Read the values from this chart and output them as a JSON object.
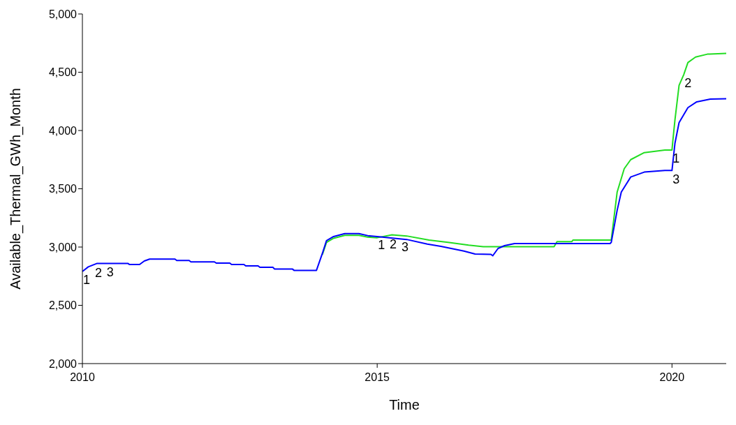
{
  "chart_data": {
    "type": "line",
    "xlabel": "Time",
    "ylabel": "Available_Thermal_GWh_Month",
    "xlim": [
      2010,
      2020.92
    ],
    "xticks": [
      2010,
      2015,
      2020
    ],
    "ylim": [
      2000,
      5000
    ],
    "yticks": [
      {
        "value": 2000,
        "label": "2,000"
      },
      {
        "value": 2500,
        "label": "2,500"
      },
      {
        "value": 3000,
        "label": "3,000"
      },
      {
        "value": 3500,
        "label": "3,500"
      },
      {
        "value": 4000,
        "label": "4,000"
      },
      {
        "value": 4500,
        "label": "4,500"
      },
      {
        "value": 5000,
        "label": "5,000"
      }
    ],
    "annotations": [
      {
        "text": "1",
        "x": 2010,
        "y": 2790
      },
      {
        "text": "2",
        "x": 2010.2,
        "y": 2850
      },
      {
        "text": "3",
        "x": 2010.4,
        "y": 2860
      },
      {
        "text": "1",
        "x": 2015,
        "y": 3090
      },
      {
        "text": "2",
        "x": 2015.2,
        "y": 3100
      },
      {
        "text": "3",
        "x": 2015.4,
        "y": 3075
      },
      {
        "text": "1",
        "x": 2020,
        "y": 3833
      },
      {
        "text": "2",
        "x": 2020.2,
        "y": 4480
      },
      {
        "text": "3",
        "x": 2020,
        "y": 3657
      }
    ],
    "series": [
      {
        "color": "#22dd22",
        "x": [
          2014.07,
          2014.14,
          2014.26,
          2014.45,
          2014.69,
          2014.84,
          2015,
          2015.25,
          2015.5,
          2015.88,
          2016.2,
          2016.55,
          2016.8,
          2018,
          2018.05,
          2018.3,
          2018.32,
          2018.97,
          2019.07,
          2019.19,
          2019.3,
          2019.53,
          2019.88,
          2020,
          2020.01,
          2020.05,
          2020.12,
          2020.2,
          2020.27,
          2020.4,
          2020.6,
          2020.92
        ],
        "values": [
          2935,
          3040,
          3075,
          3100,
          3100,
          3085,
          3080,
          3105,
          3095,
          3060,
          3040,
          3016,
          3003,
          3003,
          3046,
          3046,
          3060,
          3060,
          3472,
          3672,
          3750,
          3810,
          3833,
          3833,
          3889,
          4089,
          4387,
          4480,
          4583,
          4630,
          4655,
          4661
        ]
      },
      {
        "color": "#0000ff",
        "x": [
          2010,
          2010.1,
          2010.25,
          2010.77,
          2010.8,
          2010.97,
          2011.05,
          2011.14,
          2011.57,
          2011.6,
          2011.81,
          2011.84,
          2012.24,
          2012.27,
          2012.5,
          2012.53,
          2012.74,
          2012.77,
          2012.98,
          2013.01,
          2013.23,
          2013.26,
          2013.56,
          2013.59,
          2013.97,
          2014.07,
          2014.14,
          2014.26,
          2014.45,
          2014.69,
          2014.84,
          2015,
          2015.5,
          2015.85,
          2016.08,
          2016.47,
          2016.66,
          2016.93,
          2016.96,
          2017.05,
          2017.16,
          2017.33,
          2018.95,
          2018.97,
          2019.07,
          2019.14,
          2019.3,
          2019.53,
          2019.88,
          2020,
          2020.05,
          2020.12,
          2020.27,
          2020.42,
          2020.65,
          2020.92
        ],
        "values": [
          2790,
          2830,
          2860,
          2860,
          2850,
          2850,
          2880,
          2897,
          2897,
          2885,
          2885,
          2873,
          2873,
          2862,
          2862,
          2850,
          2850,
          2838,
          2838,
          2826,
          2826,
          2812,
          2812,
          2800,
          2800,
          2945,
          3055,
          3090,
          3115,
          3115,
          3098,
          3090,
          3065,
          3026,
          3006,
          2966,
          2940,
          2937,
          2925,
          2988,
          3012,
          3030,
          3030,
          3040,
          3315,
          3472,
          3601,
          3643,
          3657,
          3657,
          3889,
          4067,
          4196,
          4246,
          4270,
          4272
        ]
      }
    ]
  }
}
